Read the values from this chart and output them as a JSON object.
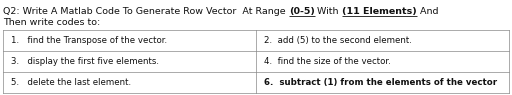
{
  "title_parts": [
    {
      "text": "Q2: Write A Matlab Code To Generate Row Vector  At Range ",
      "bold": false,
      "underline": false
    },
    {
      "text": "(0-5)",
      "bold": true,
      "underline": true
    },
    {
      "text": " With ",
      "bold": false,
      "underline": false
    },
    {
      "text": "(11 Elements)",
      "bold": true,
      "underline": true
    },
    {
      "text": " And",
      "bold": false,
      "underline": false
    }
  ],
  "title_line2": "Then write codes to:",
  "table_rows": [
    [
      "1.   find the Transpose of the vector.",
      "2.  add (5) to the second element."
    ],
    [
      "3.   display the first five elements.",
      "4.  find the size of the vector."
    ],
    [
      "5.   delete the last element.",
      "6.  subtract (1) from the elements of the vector"
    ]
  ],
  "bold_left": [
    false,
    false,
    false
  ],
  "bold_right": [
    false,
    false,
    true
  ],
  "bg_color": "#ffffff",
  "text_color": "#111111",
  "title_fontsize": 6.8,
  "table_fontsize": 6.2,
  "line_color": "#888888",
  "line_lw": 0.5
}
